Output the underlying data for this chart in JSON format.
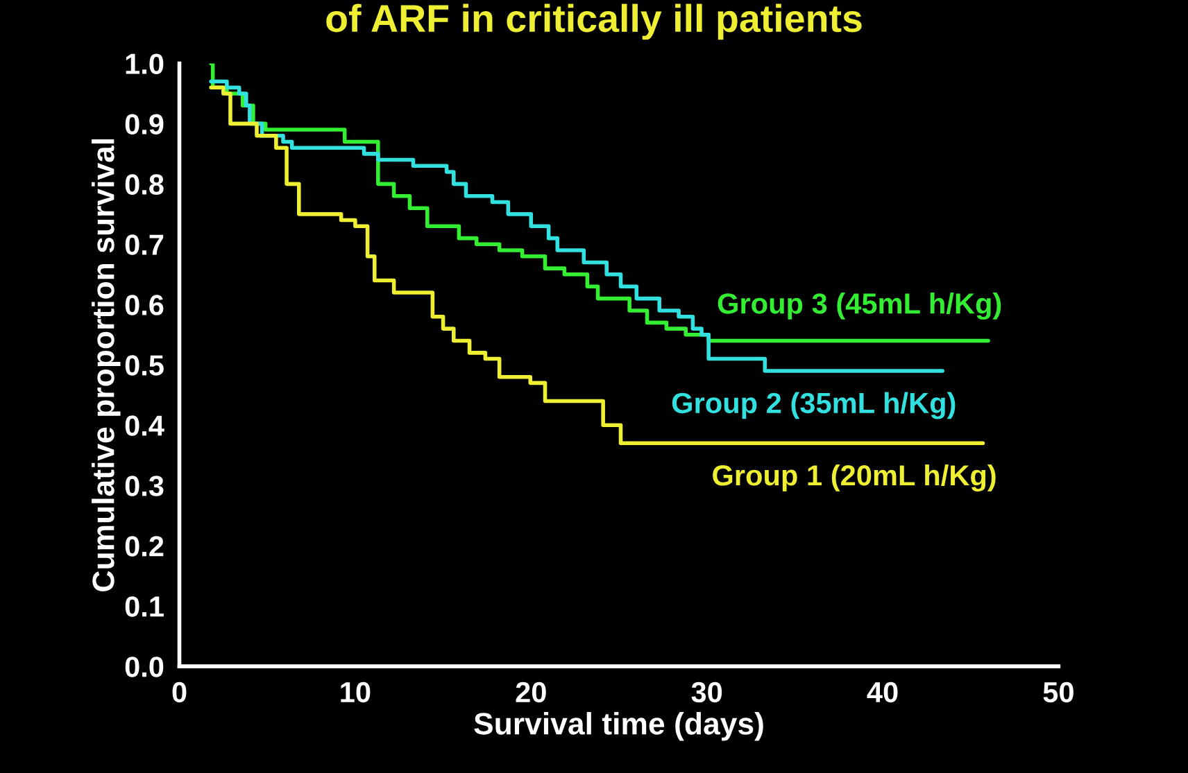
{
  "chart_data": {
    "type": "step",
    "title": "of ARF in critically ill patients",
    "xlabel": "Survival time (days)",
    "ylabel": "Cumulative proportion survival",
    "xlim": [
      0,
      50
    ],
    "xticks": [
      0,
      10,
      20,
      30,
      40,
      50
    ],
    "ylim": [
      0,
      1
    ],
    "yticks": [
      {
        "value": 0,
        "label": "0.0"
      },
      {
        "value": 0.1,
        "label": "0.1"
      },
      {
        "value": 0.2,
        "label": "0.2"
      },
      {
        "value": 0.3,
        "label": "0.3"
      },
      {
        "value": 0.4,
        "label": "0.4"
      },
      {
        "value": 0.5,
        "label": "0.5"
      },
      {
        "value": 0.6,
        "label": "0.6"
      },
      {
        "value": 0.7,
        "label": "0.7"
      },
      {
        "value": 0.8,
        "label": "0.8"
      },
      {
        "value": 0.9,
        "label": "0.9"
      },
      {
        "value": 1,
        "label": "1.0"
      }
    ],
    "grid": false,
    "legend": false,
    "marker": "none",
    "line_style": "solid",
    "series": [
      {
        "name": "Group 3 (45mL h/Kg)",
        "color": "#33ee33",
        "x": [
          1.8,
          1.9,
          2.7,
          3.6,
          4.2,
          4.9,
          9.4,
          11.3,
          12.2,
          13.1,
          14.1,
          15.9,
          16.9,
          18.2,
          19.5,
          20.8,
          21.9,
          23.2,
          23.8,
          25.6,
          26.6,
          27.7,
          28.8,
          30.1,
          46.0
        ],
        "values": [
          1.0,
          0.96,
          0.95,
          0.93,
          0.9,
          0.89,
          0.87,
          0.8,
          0.78,
          0.76,
          0.73,
          0.71,
          0.7,
          0.69,
          0.68,
          0.66,
          0.65,
          0.63,
          0.61,
          0.59,
          0.57,
          0.56,
          0.55,
          0.54,
          0.54
        ]
      },
      {
        "name": "Group 2 (35mL h/Kg)",
        "color": "#33e0e0",
        "x": [
          1.8,
          2.7,
          3.4,
          3.8,
          4.0,
          4.7,
          5.9,
          6.4,
          10.5,
          11.3,
          13.3,
          15.2,
          15.6,
          16.3,
          17.8,
          18.7,
          20.0,
          21.0,
          21.5,
          23.0,
          24.3,
          25.1,
          26.0,
          27.3,
          28.4,
          29.2,
          29.7,
          30.1,
          33.3,
          43.4
        ],
        "values": [
          0.97,
          0.96,
          0.95,
          0.93,
          0.9,
          0.88,
          0.87,
          0.86,
          0.85,
          0.84,
          0.83,
          0.82,
          0.8,
          0.78,
          0.77,
          0.75,
          0.73,
          0.71,
          0.69,
          0.67,
          0.65,
          0.63,
          0.61,
          0.59,
          0.58,
          0.56,
          0.55,
          0.51,
          0.49,
          0.49
        ]
      },
      {
        "name": "Group 1 (20mL h/Kg)",
        "color": "#eeee33",
        "x": [
          1.8,
          2.5,
          2.9,
          4.4,
          5.5,
          6.1,
          6.8,
          9.2,
          10.0,
          10.7,
          11.1,
          12.2,
          14.4,
          15.0,
          15.6,
          16.5,
          17.4,
          18.2,
          19.96,
          20.8,
          24.1,
          25.1,
          45.7
        ],
        "values": [
          0.96,
          0.95,
          0.9,
          0.88,
          0.86,
          0.8,
          0.75,
          0.74,
          0.73,
          0.68,
          0.64,
          0.62,
          0.58,
          0.56,
          0.54,
          0.52,
          0.51,
          0.48,
          0.47,
          0.44,
          0.4,
          0.37,
          0.37
        ]
      }
    ]
  }
}
